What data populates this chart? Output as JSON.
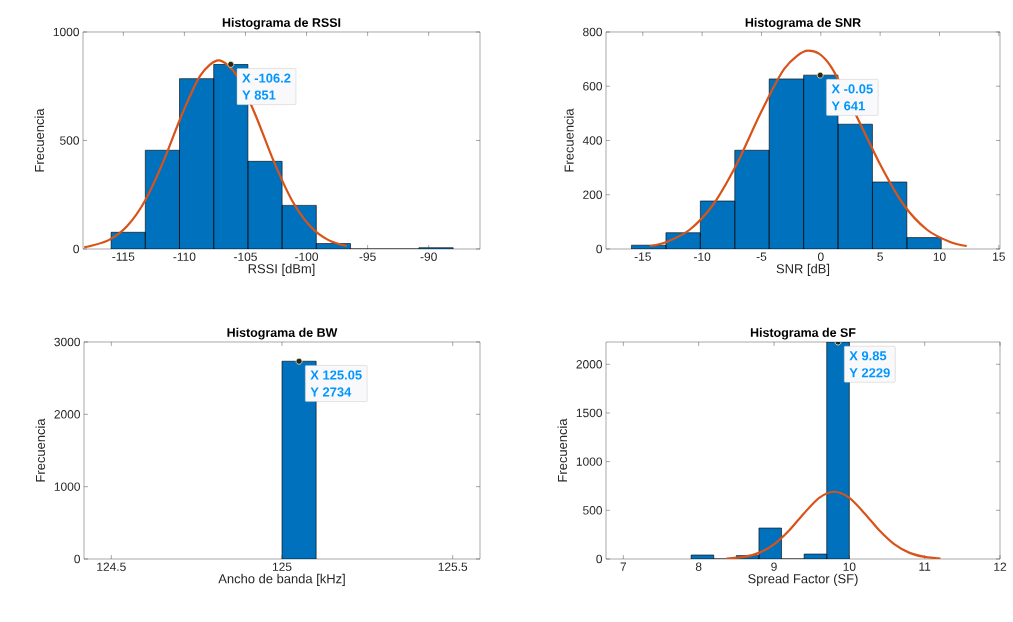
{
  "chart_data": [
    {
      "type": "histogram",
      "title": "Histograma de RSSI",
      "xlabel": "RSSI [dBm]",
      "ylabel": "Frecuencia",
      "xlim": [
        -118.3,
        -85.8
      ],
      "ylim": [
        0,
        1000
      ],
      "xticks": [
        -115,
        -110,
        -105,
        -100,
        -95,
        -90
      ],
      "yticks": [
        0,
        500,
        1000
      ],
      "series": [
        {
          "bins": [
            -116.0,
            -113.2,
            -110.4,
            -107.6,
            -104.8,
            -102.0,
            -99.2,
            -96.4,
            -93.6,
            -90.8,
            -88.0
          ],
          "values": [
            77,
            455,
            785,
            851,
            404,
            201,
            25,
            0,
            0,
            6
          ],
          "color": "#0072bd"
        },
        {
          "type": "line",
          "x": [
            -118.2,
            -117.7,
            -116.2,
            -114.7,
            -113.2,
            -111.7,
            -110.2,
            -108.7,
            -107.2,
            -105.7,
            -104.2,
            -102.7,
            -101.2,
            -99.7,
            -98.2,
            -96.7
          ],
          "values": [
            9,
            14,
            41,
            105,
            225,
            406,
            620,
            799,
            869,
            799,
            620,
            406,
            225,
            105,
            41,
            14
          ],
          "color": "#d95319"
        }
      ],
      "annotations": [
        {
          "text": "X -106.2",
          "x": -106.2,
          "y": 851
        },
        {
          "text": "Y 851",
          "x": -106.2,
          "y": 851
        }
      ]
    },
    {
      "type": "histogram",
      "title": "Histograma de SNR",
      "xlabel": "SNR [dB]",
      "ylabel": "Frecuencia",
      "xlim": [
        -18.1,
        15.1
      ],
      "ylim": [
        0,
        800
      ],
      "xticks": [
        -15,
        -10,
        -5,
        0,
        5,
        10,
        15
      ],
      "yticks": [
        0,
        200,
        400,
        600,
        800
      ],
      "series": [
        {
          "bins": [
            -15.95,
            -13.05,
            -10.15,
            -7.25,
            -4.35,
            -1.45,
            1.45,
            4.35,
            7.25,
            10.15
          ],
          "values": [
            14,
            60,
            177,
            364,
            627,
            641,
            460,
            247,
            42
          ],
          "color": "#0072bd"
        },
        {
          "type": "line",
          "x": [
            -14.4,
            -13.05,
            -11.05,
            -9.05,
            -7.05,
            -5.05,
            -3.05,
            -1.05,
            0.95,
            2.95,
            4.95,
            6.95,
            8.95,
            10.95,
            12.3
          ],
          "values": [
            11,
            25,
            71,
            165,
            316,
            503,
            666,
            731,
            666,
            null,
            316,
            165,
            71,
            25,
            11
          ],
          "color": "#d95319"
        }
      ],
      "annotations": [
        {
          "text": "X -0.05",
          "x": -0.05,
          "y": 641
        },
        {
          "text": "Y 641",
          "x": -0.05,
          "y": 641
        }
      ]
    },
    {
      "type": "histogram",
      "title": "Histograma de BW",
      "xlabel": "Ancho de banda [kHz]",
      "ylabel": "Frecuencia",
      "xlim": [
        124.42,
        125.58
      ],
      "ylim": [
        0,
        3000
      ],
      "xticks": [
        124.5,
        125,
        125.5
      ],
      "yticks": [
        0,
        1000,
        2000,
        3000
      ],
      "bins": [
        125.0,
        125.1
      ],
      "values": [
        2734
      ],
      "color": "#0072bd",
      "annotations": [
        {
          "text": "X 125.05",
          "x": 125.05,
          "y": 2734
        },
        {
          "text": "Y 2734",
          "x": 125.05,
          "y": 2734
        }
      ]
    },
    {
      "type": "histogram",
      "title": "Histograma de SF",
      "xlabel": "Spread Factor (SF)",
      "ylabel": "Frecuencia",
      "xlim": [
        6.77,
        12
      ],
      "ylim": [
        0,
        2229
      ],
      "xticks": [
        7,
        8,
        9,
        10,
        11,
        12
      ],
      "yticks": [
        0,
        500,
        1000,
        1500,
        2000
      ],
      "series": [
        {
          "bins": [
            7.9,
            8.2,
            8.5,
            8.8,
            9.1,
            9.4,
            9.7,
            10.0
          ],
          "values": [
            41,
            0,
            35,
            318,
            0,
            51,
            2229
          ],
          "color": "#0072bd"
        },
        {
          "type": "line",
          "x": [
            8.37,
            8.6,
            8.8,
            9.0,
            9.2,
            9.4,
            9.6,
            9.8,
            10.0,
            10.2,
            10.4,
            10.6,
            10.8,
            11.0,
            11.21
          ],
          "values": [
            5,
            22,
            63,
            150,
            292,
            471,
            628,
            691,
            628,
            471,
            292,
            150,
            63,
            22,
            5
          ],
          "color": "#d95319"
        }
      ],
      "annotations": [
        {
          "text": "X 9.85",
          "x": 9.85,
          "y": 2229
        },
        {
          "text": "Y 2229",
          "x": 9.85,
          "y": 2229
        }
      ]
    }
  ]
}
